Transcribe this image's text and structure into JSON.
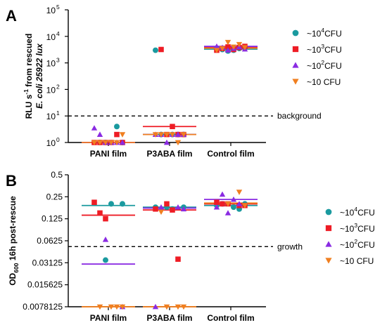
{
  "chart_data": [
    {
      "panel_label": "A",
      "type": "scatter",
      "y_scale": "log",
      "ylabel_line1": "RLU s",
      "ylabel_sup": "-1",
      "ylabel_line1_rest": " from rescued",
      "ylabel_line2": "E. coli 25922 lux",
      "ylim": [
        1,
        100000
      ],
      "y_ticks": [
        {
          "value": 1,
          "base": "10",
          "exp": "0"
        },
        {
          "value": 10,
          "base": "10",
          "exp": "1"
        },
        {
          "value": 100,
          "base": "10",
          "exp": "2"
        },
        {
          "value": 1000,
          "base": "10",
          "exp": "3"
        },
        {
          "value": 10000,
          "base": "10",
          "exp": "4"
        },
        {
          "value": 100000,
          "base": "10",
          "exp": "5"
        }
      ],
      "categories": [
        "PANI film",
        "P3ABA film",
        "Control film"
      ],
      "reference_line": {
        "value": 10,
        "label": "background"
      },
      "series": [
        {
          "name_base": "~10",
          "name_sup": "4",
          "name_rest": "CFU",
          "marker": "circle",
          "color": "#1a9a9f",
          "points": [
            [
              0,
              1,
              1.0
            ],
            [
              0,
              2,
              1.0
            ],
            [
              0,
              4,
              4.0
            ],
            [
              0,
              5,
              1.0
            ],
            [
              1,
              0,
              3000
            ],
            [
              1,
              1,
              2.0
            ],
            [
              1,
              3,
              2.0
            ],
            [
              1,
              4,
              2.0
            ],
            [
              1,
              5,
              2.0
            ],
            [
              2,
              0,
              3500
            ],
            [
              2,
              1,
              3200
            ],
            [
              2,
              2,
              2800
            ],
            [
              2,
              3,
              3000
            ],
            [
              2,
              4,
              3500
            ],
            [
              2,
              5,
              3800
            ]
          ],
          "medians": [
            1.0,
            2.0,
            3300
          ]
        },
        {
          "name_base": "~10",
          "name_sup": "3",
          "name_rest": "CFU",
          "marker": "square",
          "color": "#ee1c25",
          "points": [
            [
              0,
              0,
              1.0
            ],
            [
              0,
              1,
              1.0
            ],
            [
              0,
              2,
              1.0
            ],
            [
              0,
              3,
              1.0
            ],
            [
              0,
              4,
              2.0
            ],
            [
              0,
              5,
              1.0
            ],
            [
              1,
              1,
              3200
            ],
            [
              1,
              2,
              2.0
            ],
            [
              1,
              3,
              4.0
            ],
            [
              1,
              4,
              2.0
            ],
            [
              1,
              5,
              2.0
            ],
            [
              2,
              0,
              3000
            ],
            [
              2,
              1,
              3500
            ],
            [
              2,
              2,
              4000
            ],
            [
              2,
              3,
              3200
            ],
            [
              2,
              4,
              3800
            ],
            [
              2,
              5,
              4200
            ]
          ],
          "medians": [
            1.0,
            4.0,
            3900
          ]
        },
        {
          "name_base": "~10",
          "name_sup": "2",
          "name_rest": "CFU",
          "marker": "triangle-up",
          "color": "#8a2be2",
          "points": [
            [
              0,
              0,
              3.5
            ],
            [
              0,
              1,
              2.0
            ],
            [
              0,
              2,
              1.0
            ],
            [
              0,
              3,
              1.0
            ],
            [
              0,
              4,
              1.0
            ],
            [
              0,
              5,
              1.0
            ],
            [
              1,
              0,
              2.0
            ],
            [
              1,
              1,
              2.0
            ],
            [
              1,
              2,
              1.0
            ],
            [
              1,
              3,
              2.0
            ],
            [
              1,
              4,
              2.0
            ],
            [
              1,
              5,
              2.0
            ],
            [
              2,
              0,
              4200
            ],
            [
              2,
              1,
              3800
            ],
            [
              2,
              2,
              3000
            ],
            [
              2,
              3,
              3500
            ],
            [
              2,
              4,
              4000
            ],
            [
              2,
              5,
              3300
            ]
          ],
          "medians": [
            1.0,
            2.0,
            4200
          ]
        },
        {
          "name_base": "~10 CFU",
          "name_sup": "",
          "name_rest": "",
          "marker": "triangle-down",
          "color": "#f07f20",
          "points": [
            [
              0,
              0,
              1.0
            ],
            [
              0,
              1,
              1.0
            ],
            [
              0,
              2,
              1.0
            ],
            [
              0,
              3,
              1.0
            ],
            [
              0,
              4,
              1.0
            ],
            [
              0,
              5,
              2.0
            ],
            [
              1,
              0,
              2.0
            ],
            [
              1,
              1,
              2.0
            ],
            [
              1,
              2,
              2.0
            ],
            [
              1,
              3,
              2.0
            ],
            [
              1,
              4,
              1.0
            ],
            [
              1,
              5,
              2.0
            ],
            [
              2,
              0,
              3000
            ],
            [
              2,
              1,
              3500
            ],
            [
              2,
              2,
              6000
            ],
            [
              2,
              3,
              4000
            ],
            [
              2,
              4,
              5000
            ],
            [
              2,
              5,
              3800
            ]
          ],
          "medians": [
            1.0,
            2.0,
            3600
          ]
        }
      ]
    },
    {
      "panel_label": "B",
      "type": "scatter",
      "y_scale": "log",
      "ylabel_pre": "OD",
      "ylabel_sub": "600",
      "ylabel_post": " 16h post-rescue",
      "ylim": [
        0.0078125,
        0.5
      ],
      "y_ticks": [
        {
          "value": 0.0078125,
          "label": "0.0078125"
        },
        {
          "value": 0.015625,
          "label": "0.015625"
        },
        {
          "value": 0.03125,
          "label": "0.03125"
        },
        {
          "value": 0.0625,
          "label": "0.0625"
        },
        {
          "value": 0.125,
          "label": "0.125"
        },
        {
          "value": 0.25,
          "label": "0.25"
        },
        {
          "value": 0.5,
          "label": "0.5"
        }
      ],
      "categories": [
        "PANI film",
        "P3ABA film",
        "Control film"
      ],
      "reference_line": {
        "value": 0.052,
        "label": "growth"
      },
      "series": [
        {
          "name_base": "~10",
          "name_sup": "4",
          "name_rest": "CFU",
          "marker": "circle",
          "color": "#1a9a9f",
          "points": [
            [
              0,
              3,
              0.2
            ],
            [
              0,
              5,
              0.2
            ],
            [
              0,
              2,
              0.034
            ],
            [
              1,
              0,
              0.18
            ],
            [
              1,
              2,
              0.18
            ],
            [
              1,
              3,
              0.17
            ],
            [
              1,
              5,
              0.18
            ],
            [
              2,
              0,
              0.19
            ],
            [
              2,
              1,
              0.2
            ],
            [
              2,
              3,
              0.18
            ],
            [
              2,
              4,
              0.17
            ],
            [
              2,
              5,
              0.2
            ]
          ],
          "medians": [
            0.19,
            0.18,
            0.19
          ]
        },
        {
          "name_base": "~10",
          "name_sup": "3",
          "name_rest": "CFU",
          "marker": "square",
          "color": "#ee1c25",
          "points": [
            [
              0,
              0,
              0.21
            ],
            [
              0,
              1,
              0.15
            ],
            [
              0,
              2,
              0.125
            ],
            [
              1,
              0,
              0.17
            ],
            [
              1,
              2,
              0.2
            ],
            [
              1,
              3,
              0.165
            ],
            [
              1,
              4,
              0.035
            ],
            [
              2,
              0,
              0.21
            ],
            [
              2,
              1,
              0.2
            ],
            [
              2,
              2,
              0.2
            ],
            [
              2,
              4,
              0.19
            ],
            [
              2,
              5,
              0.19
            ]
          ],
          "medians": [
            0.14,
            0.165,
            0.2
          ]
        },
        {
          "name_base": "~10",
          "name_sup": "2",
          "name_rest": "CFU",
          "marker": "triangle-up",
          "color": "#8a2be2",
          "points": [
            [
              0,
              2,
              0.065
            ],
            [
              0,
              5,
              0.0078
            ],
            [
              1,
              1,
              0.18
            ],
            [
              1,
              4,
              0.18
            ],
            [
              1,
              5,
              0.17
            ],
            [
              1,
              0,
              0.0078
            ],
            [
              2,
              0,
              0.18
            ],
            [
              2,
              1,
              0.27
            ],
            [
              2,
              2,
              0.15
            ],
            [
              2,
              3,
              0.23
            ],
            [
              2,
              4,
              0.2
            ]
          ],
          "medians": [
            0.03,
            0.175,
            0.23
          ]
        },
        {
          "name_base": "~10 CFU",
          "name_sup": "",
          "name_rest": "",
          "marker": "triangle-down",
          "color": "#f07f20",
          "points": [
            [
              0,
              1,
              0.0078
            ],
            [
              0,
              3,
              0.0078
            ],
            [
              0,
              4,
              0.0078
            ],
            [
              0,
              5,
              0.0078
            ],
            [
              1,
              1,
              0.155
            ],
            [
              1,
              2,
              0.0078
            ],
            [
              1,
              4,
              0.0078
            ],
            [
              1,
              5,
              0.0078
            ],
            [
              2,
              2,
              0.2
            ],
            [
              2,
              4,
              0.29
            ],
            [
              2,
              5,
              0.19
            ]
          ],
          "medians": [
            0.0078,
            0.0078,
            0.205
          ]
        }
      ]
    }
  ]
}
